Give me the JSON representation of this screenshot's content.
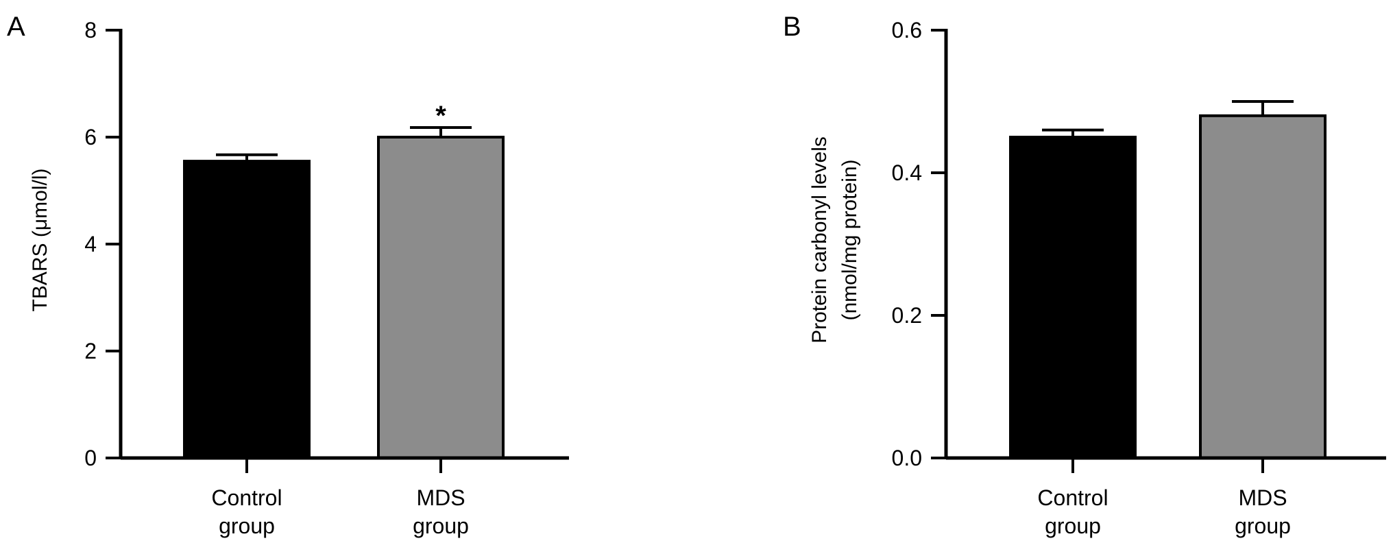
{
  "chart_data": [
    {
      "type": "bar",
      "panel_label": "A",
      "ylabel": "TBARS (μmol/l)",
      "ylabel_lines": [
        "TBARS (μmol/l)"
      ],
      "ylim": [
        0,
        8
      ],
      "yticks": [
        0,
        2,
        4,
        6,
        8
      ],
      "ytick_labels": [
        "0",
        "2",
        "4",
        "6",
        "8"
      ],
      "categories": [
        "Control group",
        "MDS group"
      ],
      "category_lines": [
        [
          "Control",
          "group"
        ],
        [
          "MDS",
          "group"
        ]
      ],
      "values": [
        5.55,
        6.0
      ],
      "errors": [
        0.12,
        0.18
      ],
      "colors": [
        "#000000",
        "#8c8c8c"
      ],
      "annotations": [
        "",
        "*"
      ]
    },
    {
      "type": "bar",
      "panel_label": "B",
      "ylabel": "Protein carbonyl levels (nmol/mg protein)",
      "ylabel_lines": [
        "Protein carbonyl levels",
        "(nmol/mg protein)"
      ],
      "ylim": [
        0,
        0.6
      ],
      "yticks": [
        0,
        0.2,
        0.4,
        0.6
      ],
      "ytick_labels": [
        "0.0",
        "0.2",
        "0.4",
        "0.6"
      ],
      "categories": [
        "Control group",
        "MDS group"
      ],
      "category_lines": [
        [
          "Control",
          "group"
        ],
        [
          "MDS",
          "group"
        ]
      ],
      "values": [
        0.45,
        0.48
      ],
      "errors": [
        0.01,
        0.02
      ],
      "colors": [
        "#000000",
        "#8c8c8c"
      ],
      "annotations": [
        "",
        ""
      ]
    }
  ]
}
